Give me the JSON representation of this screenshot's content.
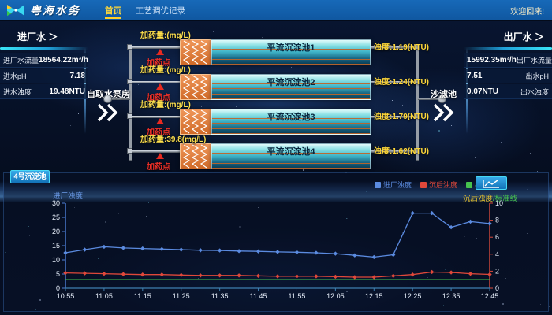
{
  "nav": {
    "brand": "粤海水务",
    "menu": [
      {
        "label": "首页",
        "active": true
      },
      {
        "label": "工艺调优记录",
        "active": false
      }
    ],
    "welcome": "欢迎回来!"
  },
  "left_panel": {
    "title": "进厂水",
    "arrow": "＞",
    "rows": [
      {
        "label": "进厂水流量",
        "value": "18564.22m³/h"
      },
      {
        "label": "进水pH",
        "value": "7.18"
      },
      {
        "label": "进水浊度",
        "value": "19.48NTU"
      }
    ]
  },
  "right_panel": {
    "title": "出厂水",
    "arrow": "＞",
    "rows": [
      {
        "value": "15992.35m³/h",
        "label": "出厂水流量"
      },
      {
        "value": "7.51",
        "label": "出水pH"
      },
      {
        "value": "0.07NTU",
        "label": "出水浊度"
      }
    ]
  },
  "diagram": {
    "source_label": "自取水泵房",
    "sink_label": "沙滤池",
    "rows": [
      {
        "dose_label": "加药量:(mg/L)",
        "dose_point": "加药点",
        "tank": "平流沉淀池1",
        "turbidity": "浊度:1.19(NTU)"
      },
      {
        "dose_label": "加药量:(mg/L)",
        "dose_point": "加药点",
        "tank": "平流沉淀池2",
        "turbidity": "浊度:1.24(NTU)"
      },
      {
        "dose_label": "加药量:(mg/L)",
        "dose_point": "加药点",
        "tank": "平流沉淀池3",
        "turbidity": "浊度:1.79(NTU)"
      },
      {
        "dose_label": "加药量:39.8(mg/L)",
        "dose_point": "加药点",
        "tank": "平流沉淀池4",
        "turbidity": "浊度:1.62(NTU)"
      }
    ]
  },
  "chart_panel": {
    "tab": "4号沉淀池",
    "view_button_icon": "line-chart-icon",
    "accent_color": "#45d8f5"
  },
  "chart_data": {
    "type": "line",
    "title": "",
    "grid": false,
    "legend_position": "top-right",
    "x": [
      "10:55",
      "11:00",
      "11:05",
      "11:10",
      "11:15",
      "11:20",
      "11:25",
      "11:30",
      "11:35",
      "11:40",
      "11:45",
      "11:50",
      "11:55",
      "12:00",
      "12:05",
      "12:10",
      "12:15",
      "12:20",
      "12:25",
      "12:30",
      "12:35",
      "12:40",
      "12:45"
    ],
    "x_tick_labels": [
      "10:55",
      "11:05",
      "11:15",
      "11:25",
      "11:35",
      "11:45",
      "11:55",
      "12:05",
      "12:15",
      "12:25",
      "12:35",
      "12:45"
    ],
    "left_axis": {
      "title": "进厂浊度",
      "min": 0,
      "max": 30,
      "ticks": [
        0,
        5,
        10,
        15,
        20,
        25,
        30
      ],
      "color": "#4d7fd8"
    },
    "right_axis": {
      "title_main": "沉后浊度",
      "title_suffix": "/标准线",
      "min": 0,
      "max": 10,
      "ticks": [
        0,
        2,
        4,
        6,
        8,
        10
      ],
      "color": "#d84a3c"
    },
    "series": [
      {
        "name": "进厂浊度",
        "axis": "left",
        "color": "#5b8be0",
        "marker": true,
        "values": [
          12.5,
          13.6,
          14.6,
          14.2,
          14.0,
          13.8,
          13.6,
          13.4,
          13.3,
          13.1,
          13.0,
          12.8,
          12.7,
          12.5,
          12.2,
          11.6,
          11.0,
          11.8,
          26.5,
          26.5,
          21.5,
          23.5,
          22.8
        ]
      },
      {
        "name": "沉后浊度",
        "axis": "right",
        "color": "#e0483a",
        "marker": true,
        "values": [
          1.8,
          1.75,
          1.7,
          1.65,
          1.6,
          1.6,
          1.55,
          1.5,
          1.5,
          1.5,
          1.45,
          1.4,
          1.4,
          1.4,
          1.35,
          1.3,
          1.3,
          1.45,
          1.6,
          1.9,
          1.85,
          1.7,
          1.62
        ]
      },
      {
        "name": "标准线",
        "axis": "right",
        "color": "#46c24e",
        "marker": false,
        "values": [
          1.0,
          1.0,
          1.0,
          1.0,
          1.0,
          1.0,
          1.0,
          1.0,
          1.0,
          1.0,
          1.0,
          1.0,
          1.0,
          1.0,
          1.0,
          1.0,
          1.0,
          1.0,
          1.0,
          1.0,
          1.0,
          1.0,
          1.0
        ]
      }
    ]
  }
}
